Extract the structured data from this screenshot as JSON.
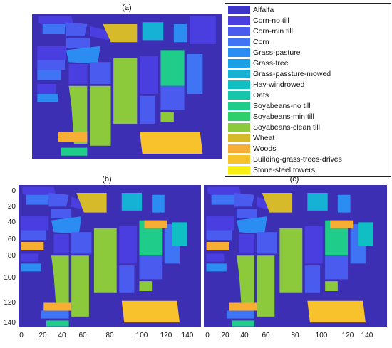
{
  "panels": [
    {
      "label": "(a)"
    },
    {
      "label": "(b)"
    },
    {
      "label": "(c)"
    }
  ],
  "legend": [
    {
      "label": "Alfalfa",
      "color": "#3f34c8"
    },
    {
      "label": "Corn-no till",
      "color": "#4a3ee0"
    },
    {
      "label": "Corn-min till",
      "color": "#4a5cf0"
    },
    {
      "label": "Corn",
      "color": "#3f74f4"
    },
    {
      "label": "Grass-pasture",
      "color": "#2b8cf2"
    },
    {
      "label": "Grass-tree",
      "color": "#1aa0e6"
    },
    {
      "label": "Grass-passture-mowed",
      "color": "#15b2d6"
    },
    {
      "label": "Hay-windrowed",
      "color": "#0fbfc4"
    },
    {
      "label": "Oats",
      "color": "#15c6ac"
    },
    {
      "label": "Soyabeans-no till",
      "color": "#1fcc8a"
    },
    {
      "label": "Soyabeans-min till",
      "color": "#2ccf6a"
    },
    {
      "label": "Soyabeans-clean till",
      "color": "#8cca3c"
    },
    {
      "label": "Wheat",
      "color": "#d6ba2a"
    },
    {
      "label": "Woods",
      "color": "#f8ae34"
    },
    {
      "label": "Building-grass-trees-drives",
      "color": "#f8c22c"
    },
    {
      "label": "Stone-steel towers",
      "color": "#f8f015"
    }
  ],
  "axes": {
    "y_ticks": [
      "0",
      "20",
      "40",
      "60",
      "80",
      "100",
      "120",
      "140"
    ],
    "x_ticks_b": [
      "0",
      "20",
      "40",
      "60",
      "80",
      "100",
      "120",
      "140"
    ],
    "x_ticks_c": [
      "0",
      "20",
      "40",
      "60",
      "80",
      "100",
      "120",
      "140"
    ]
  }
}
